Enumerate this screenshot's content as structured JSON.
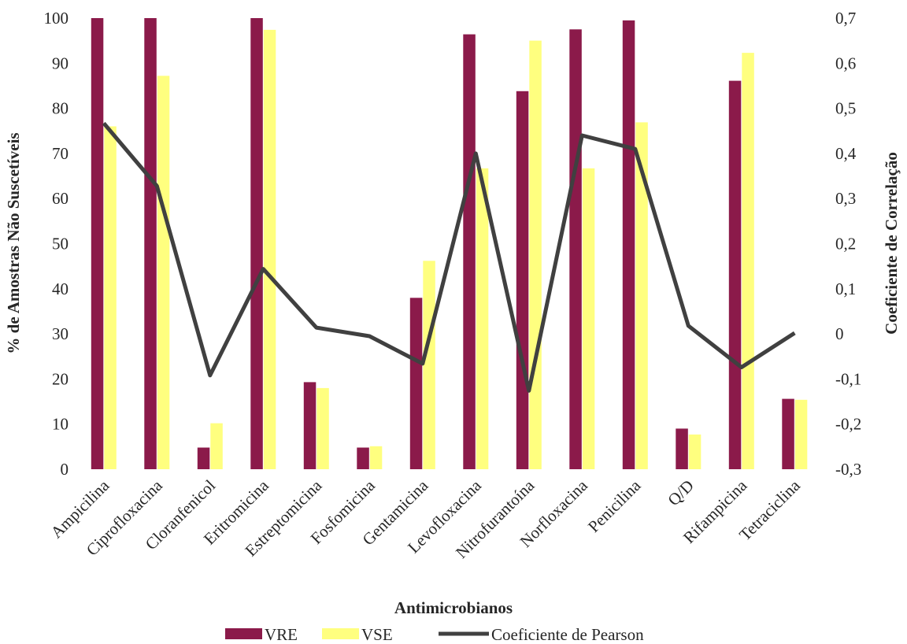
{
  "chart_data": {
    "type": "bar",
    "title": "",
    "xlabel": "Antimicrobianos",
    "ylabel": "% de Amostras Não Suscetíveis",
    "y2label": "Coeficiente de Correlação",
    "ylim": [
      0,
      100
    ],
    "y2lim": [
      -0.3,
      0.7
    ],
    "yticks": [
      "0",
      "10",
      "20",
      "30",
      "40",
      "50",
      "60",
      "70",
      "80",
      "90",
      "100"
    ],
    "y2ticks": [
      "-0,3",
      "-0,2",
      "-0,1",
      "0",
      "0,1",
      "0,2",
      "0,3",
      "0,4",
      "0,5",
      "0,6",
      "0,7"
    ],
    "categories": [
      "Ampicilina",
      "Ciprofloxacina",
      "Cloranfenicol",
      "Eritromicina",
      "Estreptomicina",
      "Fosfomicina",
      "Gentamicina",
      "Levofloxacina",
      "Nitrofurantoína",
      "Norfloxacina",
      "Penicilina",
      "Q/D",
      "Rifampicina",
      "Tetraciclina"
    ],
    "series": [
      {
        "name": "VRE",
        "type": "bar",
        "axis": "left",
        "color": "#8B1A4A",
        "values": [
          100,
          100,
          4.8,
          100,
          19.3,
          4.8,
          38,
          96.4,
          83.8,
          97.5,
          99.5,
          9,
          86.1,
          15.6
        ]
      },
      {
        "name": "VSE",
        "type": "bar",
        "axis": "left",
        "color": "#FFFF7F",
        "values": [
          76,
          87.2,
          10.2,
          97.4,
          18,
          5.1,
          46.2,
          66.7,
          95,
          66.7,
          76.9,
          7.7,
          92.3,
          15.4
        ]
      },
      {
        "name": "Coeficiente de Pearson",
        "type": "line",
        "axis": "right",
        "color": "#404040",
        "values": [
          0.467,
          0.328,
          -0.092,
          0.144,
          0.014,
          -0.005,
          -0.066,
          0.4,
          -0.126,
          0.44,
          0.41,
          0.018,
          -0.074,
          0.002
        ]
      }
    ],
    "legend": [
      "VRE",
      "VSE",
      "Coeficiente de Pearson"
    ],
    "legend_position": "bottom",
    "grid": false
  }
}
